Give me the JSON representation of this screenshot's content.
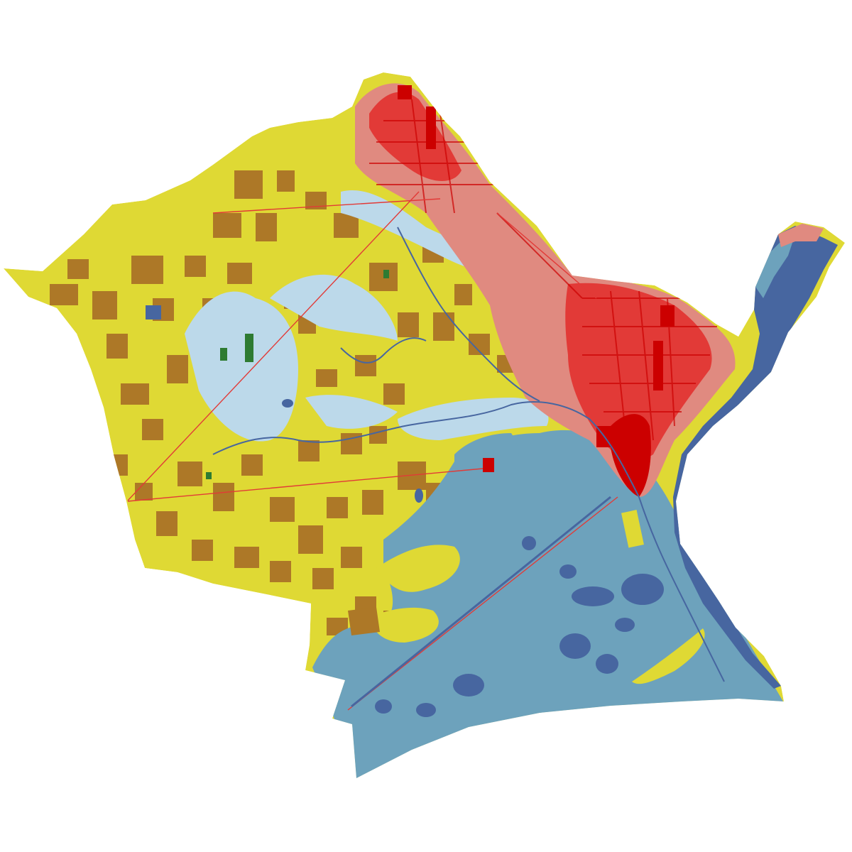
{
  "map": {
    "colors": {
      "background": "#ffffff",
      "open_water": "#4766a0",
      "emergent_wetland": "#6da2bc",
      "woody_wetland": "#bcd9ea",
      "cultivated_crops": "#dfd934",
      "pasture_hay": "#ad7827",
      "developed_open": "#e6a8a2",
      "developed_low": "#e08a80",
      "developed_medium": "#e23a37",
      "developed_high": "#cc0000",
      "forest": "#2e7b32",
      "shrub_grass": "#c9c793"
    },
    "layers": [
      "county-outline",
      "agriculture-region",
      "wetland-region",
      "urban-region",
      "bay-water",
      "lakes",
      "rivers",
      "roads"
    ]
  }
}
